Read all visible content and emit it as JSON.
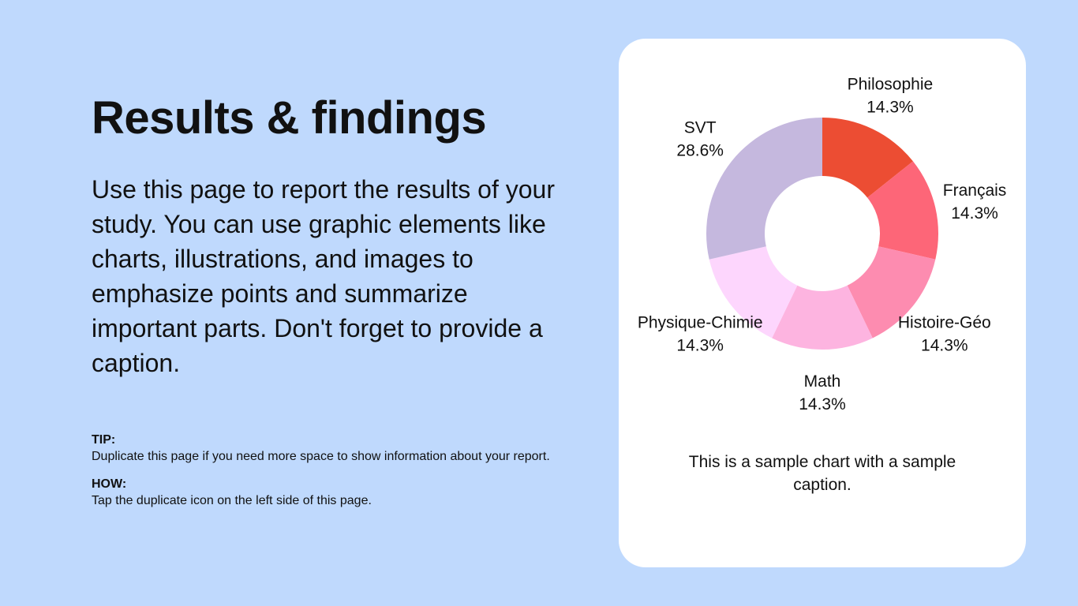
{
  "page": {
    "title": "Results & findings",
    "body": "Use this page to report the results of your study. You can use graphic elements like charts, illustrations, and images to emphasize points and summarize important parts. Don't forget to provide a caption.",
    "tip": {
      "label": "TIP:",
      "text": "Duplicate this page if you need more space to show information about your report."
    },
    "how": {
      "label": "HOW:",
      "text": "Tap the duplicate icon on the left side of this page."
    },
    "caption": "This is a sample chart with a sample caption."
  },
  "colors": {
    "background": "#bfd9fd",
    "card": "#ffffff"
  },
  "chart_data": {
    "type": "pie",
    "donut": true,
    "slices": [
      {
        "label": "Philosophie",
        "value": 14.3,
        "display": "14.3%",
        "color": "#ec4d33"
      },
      {
        "label": "Français",
        "value": 14.3,
        "display": "14.3%",
        "color": "#fd6678"
      },
      {
        "label": "Histoire-Géo",
        "value": 14.3,
        "display": "14.3%",
        "color": "#fd8cb0"
      },
      {
        "label": "Math",
        "value": 14.3,
        "display": "14.3%",
        "color": "#fdb4e0"
      },
      {
        "label": "Physique-Chimie",
        "value": 14.3,
        "display": "14.3%",
        "color": "#fdd6fd"
      },
      {
        "label": "SVT",
        "value": 28.6,
        "display": "28.6%",
        "color": "#c5b8de"
      }
    ]
  }
}
